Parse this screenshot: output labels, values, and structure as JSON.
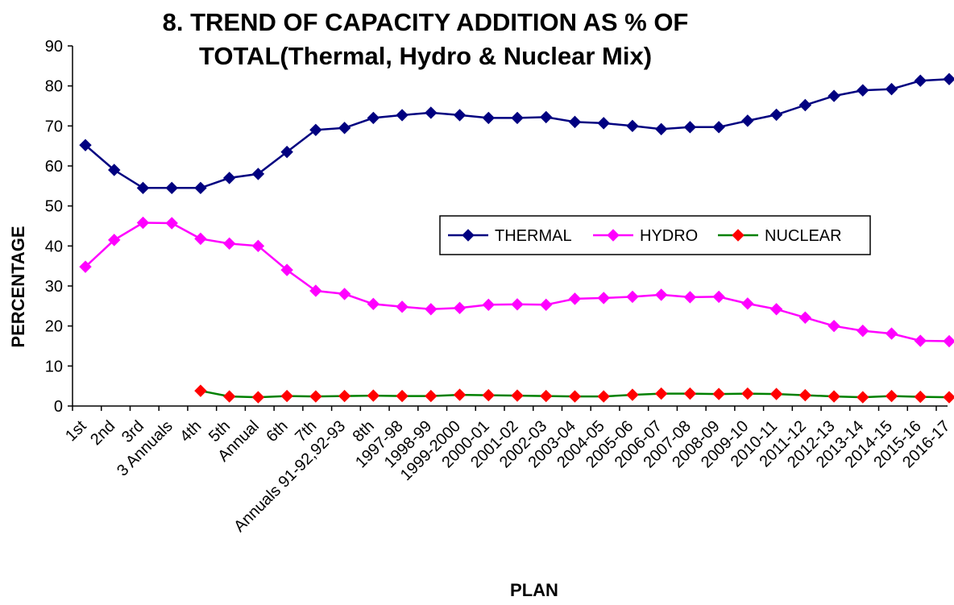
{
  "chart_data": {
    "type": "line",
    "title_lines": [
      "8. TREND OF CAPACITY ADDITION AS % OF",
      "TOTAL(Thermal, Hydro & Nuclear Mix)"
    ],
    "xlabel": "PLAN",
    "ylabel": "PERCENTAGE",
    "ylim": [
      0,
      90
    ],
    "yticks": [
      0,
      10,
      20,
      30,
      40,
      50,
      60,
      70,
      80,
      90
    ],
    "grid": false,
    "legend_position": "right-middle",
    "categories": [
      "1st",
      "2nd",
      "3rd",
      "3 Annuals",
      "4th",
      "5th",
      "Annual",
      "6th",
      "7th",
      "Annuals  91-92,92-93",
      "8th",
      "1997-98",
      "1998-99",
      "1999-2000",
      "2000-01",
      "2001-02",
      "2002-03",
      "2003-04",
      "2004-05",
      "2005-06",
      "2006-07",
      "2007-08",
      "2008-09",
      "2009-10",
      "2010-11",
      "2011-12",
      "2012-13",
      "2013-14",
      "2014-15",
      "2015-16",
      "2016-17"
    ],
    "series": [
      {
        "name": "THERMAL",
        "color": "#000080",
        "marker_color": "#000080",
        "marker": "diamond",
        "values": [
          65.2,
          59.0,
          54.5,
          54.5,
          54.5,
          57.0,
          58.0,
          63.5,
          69.0,
          69.5,
          72.0,
          72.7,
          73.3,
          72.7,
          72.0,
          72.0,
          72.2,
          71.0,
          70.7,
          70.0,
          69.2,
          69.7,
          69.7,
          71.3,
          72.8,
          75.2,
          77.5,
          78.9,
          79.2,
          81.3,
          81.7
        ]
      },
      {
        "name": "HYDRO",
        "color": "#ff00ff",
        "marker_color": "#ff00ff",
        "marker": "diamond",
        "values": [
          34.8,
          41.5,
          45.8,
          45.7,
          41.8,
          40.6,
          40.0,
          34.0,
          28.8,
          28.0,
          25.5,
          24.8,
          24.2,
          24.5,
          25.3,
          25.4,
          25.3,
          26.8,
          27.0,
          27.3,
          27.8,
          27.2,
          27.3,
          25.6,
          24.2,
          22.1,
          20.0,
          18.8,
          18.1,
          16.3,
          16.2
        ]
      },
      {
        "name": "NUCLEAR",
        "color": "#008000",
        "marker_color": "#ff0000",
        "marker": "diamond",
        "values": [
          null,
          null,
          null,
          null,
          3.8,
          2.4,
          2.2,
          2.5,
          2.4,
          2.5,
          2.6,
          2.5,
          2.5,
          2.8,
          2.7,
          2.6,
          2.5,
          2.4,
          2.4,
          2.8,
          3.1,
          3.1,
          3.0,
          3.1,
          3.0,
          2.7,
          2.4,
          2.2,
          2.5,
          2.3,
          2.2
        ]
      }
    ]
  }
}
